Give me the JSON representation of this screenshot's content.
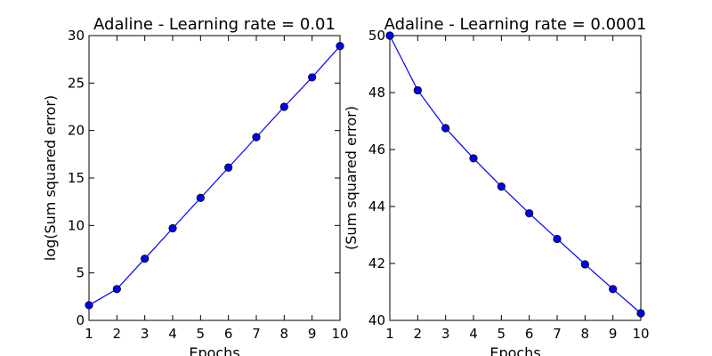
{
  "chart_data": [
    {
      "type": "line",
      "title": "Adaline - Learning rate = 0.01",
      "xlabel": "Epochs",
      "ylabel": "log(Sum squared error)",
      "xlim": [
        1,
        10
      ],
      "ylim": [
        0,
        30
      ],
      "xticks": [
        1,
        2,
        3,
        4,
        5,
        6,
        7,
        8,
        9,
        10
      ],
      "yticks": [
        0,
        5,
        10,
        15,
        20,
        25,
        30
      ],
      "grid": false,
      "series": [
        {
          "color": "#0000ff",
          "marker": "circle",
          "x": [
            1,
            2,
            3,
            4,
            5,
            6,
            7,
            8,
            9,
            10
          ],
          "y": [
            1.6,
            3.3,
            6.5,
            9.7,
            12.9,
            16.1,
            19.3,
            22.5,
            25.6,
            28.9
          ]
        }
      ]
    },
    {
      "type": "line",
      "title": "Adaline - Learning rate = 0.0001",
      "xlabel": "Epochs",
      "ylabel": "(Sum squared error)",
      "xlim": [
        1,
        10
      ],
      "ylim": [
        40,
        50
      ],
      "xticks": [
        1,
        2,
        3,
        4,
        5,
        6,
        7,
        8,
        9,
        10
      ],
      "yticks": [
        40,
        42,
        44,
        46,
        48,
        50
      ],
      "grid": false,
      "series": [
        {
          "color": "#0000ff",
          "marker": "circle",
          "x": [
            1,
            2,
            3,
            4,
            5,
            6,
            7,
            8,
            9,
            10
          ],
          "y": [
            50.0,
            48.08,
            46.75,
            45.69,
            44.7,
            43.76,
            42.86,
            41.97,
            41.1,
            40.25
          ]
        }
      ]
    }
  ]
}
